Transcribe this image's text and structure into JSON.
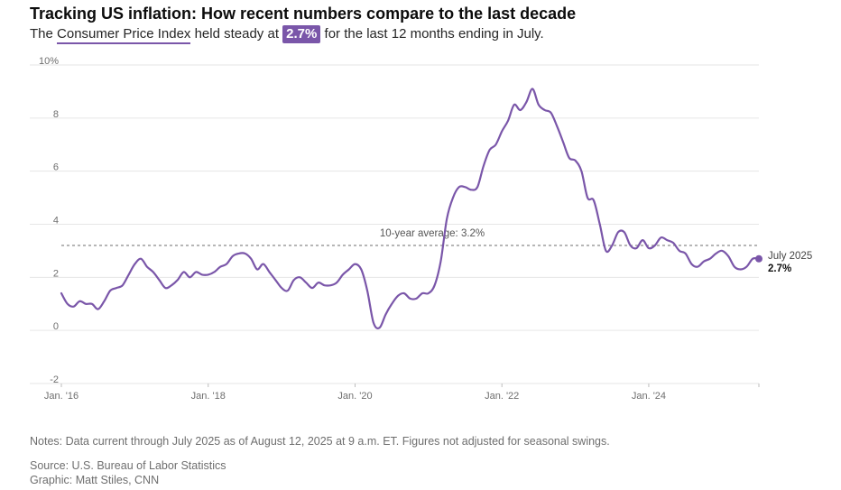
{
  "header": {
    "title": "Tracking US inflation: How recent numbers compare to the last decade",
    "subtitle_prefix": "The ",
    "subtitle_link": "Consumer Price Index",
    "subtitle_middle": " held steady at ",
    "subtitle_value": "2.7%",
    "subtitle_suffix": " for the last 12 months ending in July."
  },
  "footer": {
    "notes": "Notes: Data current through July 2025 as of August 12, 2025 at 9 a.m. ET. Figures not adjusted for seasonal swings.",
    "source": "Source: U.S. Bureau of Labor Statistics",
    "credit": "Graphic: Matt Stiles, CNN"
  },
  "colors": {
    "line": "#7a56a9",
    "average_line": "#8a8a8a",
    "grid": "#e6e6e6",
    "axis_text": "#6e6e6e"
  },
  "chart_data": {
    "type": "line",
    "title": "",
    "xlabel": "",
    "ylabel": "",
    "ylim": [
      -2,
      10
    ],
    "x_range": [
      "2016-01",
      "2025-07"
    ],
    "y_ticks": [
      {
        "value": 10,
        "label": "10%"
      },
      {
        "value": 8,
        "label": "8"
      },
      {
        "value": 6,
        "label": "6"
      },
      {
        "value": 4,
        "label": "4"
      },
      {
        "value": 2,
        "label": "2"
      },
      {
        "value": 0,
        "label": "0"
      },
      {
        "value": -2,
        "label": "-2"
      }
    ],
    "x_ticks": [
      {
        "date": "2016-01",
        "label": "Jan. '16"
      },
      {
        "date": "2018-01",
        "label": "Jan. '18"
      },
      {
        "date": "2020-01",
        "label": "Jan. '20"
      },
      {
        "date": "2022-01",
        "label": "Jan. '22"
      },
      {
        "date": "2024-01",
        "label": "Jan. '24"
      }
    ],
    "grid": true,
    "average": {
      "value": 3.2,
      "label": "10-year average: 3.2%"
    },
    "end_annotation": {
      "date": "July 2025",
      "value": "2.7%"
    },
    "series": [
      {
        "x": [
          "2016-01",
          "2016-02",
          "2016-03",
          "2016-04",
          "2016-05",
          "2016-06",
          "2016-07",
          "2016-08",
          "2016-09",
          "2016-10",
          "2016-11",
          "2016-12",
          "2017-01",
          "2017-02",
          "2017-03",
          "2017-04",
          "2017-05",
          "2017-06",
          "2017-07",
          "2017-08",
          "2017-09",
          "2017-10",
          "2017-11",
          "2017-12",
          "2018-01",
          "2018-02",
          "2018-03",
          "2018-04",
          "2018-05",
          "2018-06",
          "2018-07",
          "2018-08",
          "2018-09",
          "2018-10",
          "2018-11",
          "2018-12",
          "2019-01",
          "2019-02",
          "2019-03",
          "2019-04",
          "2019-05",
          "2019-06",
          "2019-07",
          "2019-08",
          "2019-09",
          "2019-10",
          "2019-11",
          "2019-12",
          "2020-01",
          "2020-02",
          "2020-03",
          "2020-04",
          "2020-05",
          "2020-06",
          "2020-07",
          "2020-08",
          "2020-09",
          "2020-10",
          "2020-11",
          "2020-12",
          "2021-01",
          "2021-02",
          "2021-03",
          "2021-04",
          "2021-05",
          "2021-06",
          "2021-07",
          "2021-08",
          "2021-09",
          "2021-10",
          "2021-11",
          "2021-12",
          "2022-01",
          "2022-02",
          "2022-03",
          "2022-04",
          "2022-05",
          "2022-06",
          "2022-07",
          "2022-08",
          "2022-09",
          "2022-10",
          "2022-11",
          "2022-12",
          "2023-01",
          "2023-02",
          "2023-03",
          "2023-04",
          "2023-05",
          "2023-06",
          "2023-07",
          "2023-08",
          "2023-09",
          "2023-10",
          "2023-11",
          "2023-12",
          "2024-01",
          "2024-02",
          "2024-03",
          "2024-04",
          "2024-05",
          "2024-06",
          "2024-07",
          "2024-08",
          "2024-09",
          "2024-10",
          "2024-11",
          "2024-12",
          "2025-01",
          "2025-02",
          "2025-03",
          "2025-04",
          "2025-05",
          "2025-06",
          "2025-07"
        ],
        "values": [
          1.4,
          1.0,
          0.9,
          1.1,
          1.0,
          1.0,
          0.8,
          1.1,
          1.5,
          1.6,
          1.7,
          2.1,
          2.5,
          2.7,
          2.4,
          2.2,
          1.9,
          1.6,
          1.7,
          1.9,
          2.2,
          2.0,
          2.2,
          2.1,
          2.1,
          2.2,
          2.4,
          2.5,
          2.8,
          2.9,
          2.9,
          2.7,
          2.3,
          2.5,
          2.2,
          1.9,
          1.6,
          1.5,
          1.9,
          2.0,
          1.8,
          1.6,
          1.8,
          1.7,
          1.7,
          1.8,
          2.1,
          2.3,
          2.5,
          2.3,
          1.5,
          0.3,
          0.1,
          0.6,
          1.0,
          1.3,
          1.4,
          1.2,
          1.2,
          1.4,
          1.4,
          1.7,
          2.6,
          4.2,
          5.0,
          5.4,
          5.4,
          5.3,
          5.4,
          6.2,
          6.8,
          7.0,
          7.5,
          7.9,
          8.5,
          8.3,
          8.6,
          9.1,
          8.5,
          8.3,
          8.2,
          7.7,
          7.1,
          6.5,
          6.4,
          6.0,
          5.0,
          4.9,
          4.0,
          3.0,
          3.2,
          3.7,
          3.7,
          3.2,
          3.1,
          3.4,
          3.1,
          3.2,
          3.5,
          3.4,
          3.3,
          3.0,
          2.9,
          2.5,
          2.4,
          2.6,
          2.7,
          2.9,
          3.0,
          2.8,
          2.4,
          2.3,
          2.4,
          2.7,
          2.7
        ]
      }
    ]
  }
}
